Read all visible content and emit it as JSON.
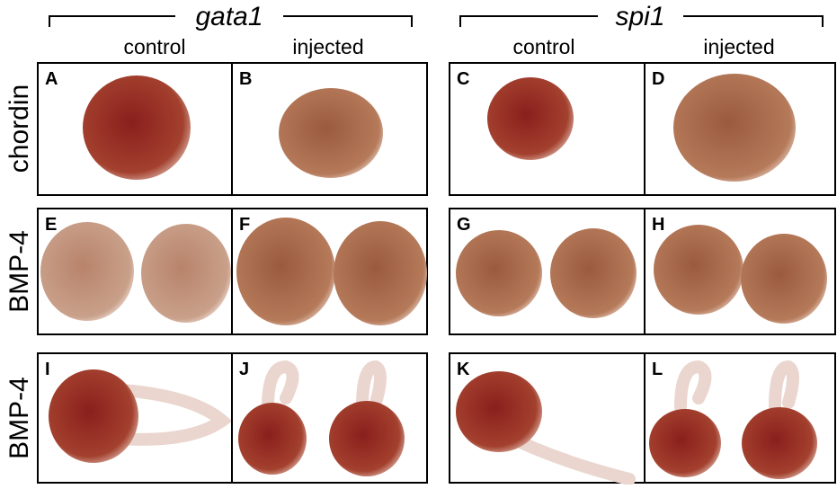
{
  "column_groups": [
    {
      "label": "gata1",
      "columns": [
        "control",
        "injected"
      ]
    },
    {
      "label": "spi1",
      "columns": [
        "control",
        "injected"
      ]
    }
  ],
  "rows": [
    "chordin",
    "BMP-4",
    "BMP-4"
  ],
  "panels": [
    [
      "A",
      "B",
      "C",
      "D"
    ],
    [
      "E",
      "F",
      "G",
      "H"
    ],
    [
      "I",
      "J",
      "K",
      "L"
    ]
  ]
}
